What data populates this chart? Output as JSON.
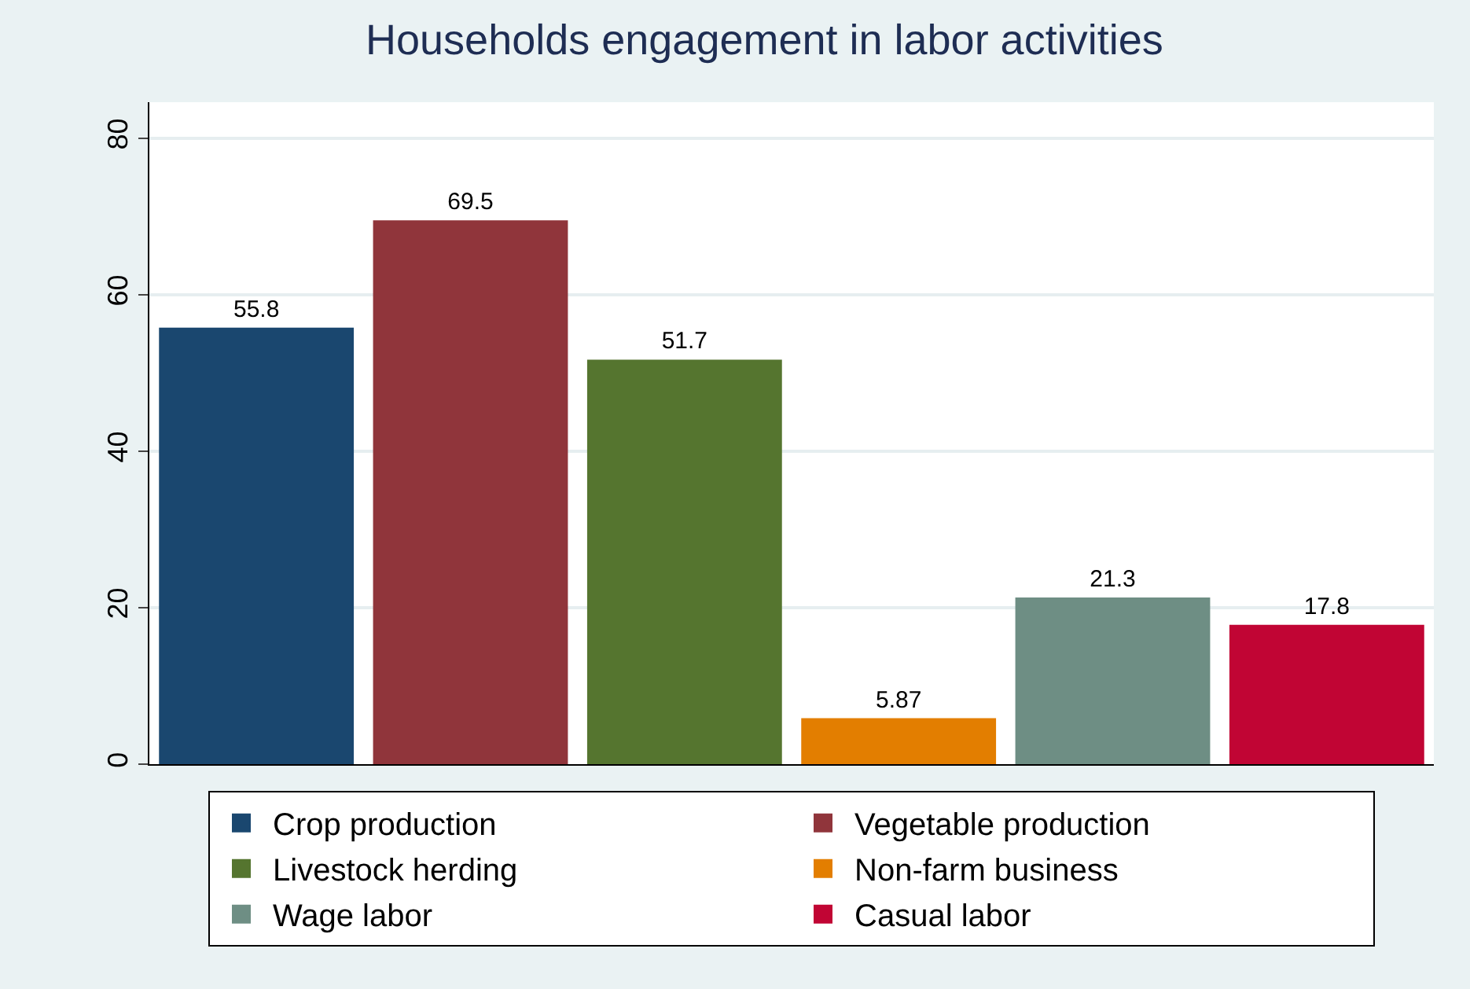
{
  "chart_data": {
    "type": "bar",
    "title": "Households engagement in labor activities",
    "categories": [
      null,
      null,
      null,
      null,
      null,
      null
    ],
    "series": [
      {
        "name": "Crop production",
        "color": "#1a476f",
        "values": [
          55.8,
          null,
          null,
          null,
          null,
          null
        ]
      },
      {
        "name": "Vegetable production",
        "color": "#90353b",
        "values": [
          null,
          69.5,
          null,
          null,
          null,
          null
        ]
      },
      {
        "name": "Livestock herding",
        "color": "#55752f",
        "values": [
          null,
          null,
          51.7,
          null,
          null,
          null
        ]
      },
      {
        "name": "Non-farm business",
        "color": "#e37e00",
        "values": [
          null,
          null,
          null,
          5.87,
          null,
          null
        ]
      },
      {
        "name": "Wage labor",
        "color": "#6e8e84",
        "values": [
          null,
          null,
          null,
          null,
          21.3,
          null
        ]
      },
      {
        "name": "Casual labor",
        "color": "#c10534",
        "values": [
          null,
          null,
          null,
          null,
          null,
          17.8
        ]
      }
    ],
    "ylim": [
      0,
      84.6
    ],
    "yticks": [
      0,
      20,
      40,
      60,
      80
    ],
    "grid": "y",
    "legend": "bottom",
    "data_labels": true
  }
}
